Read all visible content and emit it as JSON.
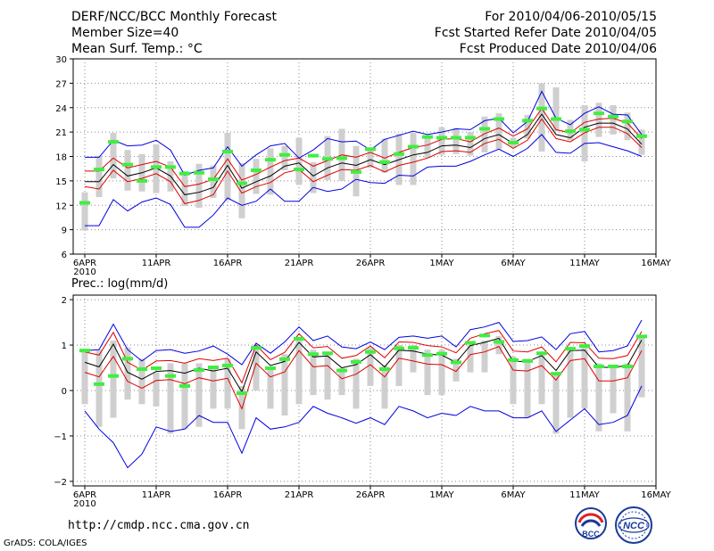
{
  "header": {
    "title": "DERF/NCC/BCC Monthly Forecast",
    "member_size": "Member Size=40",
    "variable": "Mean Surf. Temp.: °C",
    "period": "For 2010/04/06-2010/05/15",
    "started": "Fcst Started Refer Date 2010/04/05",
    "produced": "Fcst Produced Date 2010/04/06"
  },
  "footer": {
    "url": "http://cmdp.ncc.cma.gov.cn",
    "credit": "GrADS: COLA/IGES",
    "logo_bcc_text": "BCC",
    "logo_ncc_text": "NCC"
  },
  "colors": {
    "spread_bar": "#cfcfcf",
    "ensemble_mean": "#000000",
    "inner_band": "#e00000",
    "outer_band": "#0000e0",
    "deterministic_marker": "#40ee40",
    "grid": "#8a8a8a"
  },
  "chart_data": [
    {
      "type": "line",
      "title": "Mean Surf. Temp.: °C",
      "xlabel": "",
      "ylabel": "°C",
      "ylim": [
        6,
        30
      ],
      "yticks": [
        6,
        9,
        12,
        15,
        18,
        21,
        24,
        27,
        30
      ],
      "x_days": [
        0,
        1,
        2,
        3,
        4,
        5,
        6,
        7,
        8,
        9,
        10,
        11,
        12,
        13,
        14,
        15,
        16,
        17,
        18,
        19,
        20,
        21,
        22,
        23,
        24,
        25,
        26,
        27,
        28,
        29,
        30,
        31,
        32,
        33,
        34,
        35,
        36,
        37,
        38,
        39
      ],
      "xticks": [
        {
          "day": 0,
          "label": "6APR",
          "sublabel": "2010"
        },
        {
          "day": 5,
          "label": "11APR"
        },
        {
          "day": 10,
          "label": "16APR"
        },
        {
          "day": 15,
          "label": "21APR"
        },
        {
          "day": 20,
          "label": "26APR"
        },
        {
          "day": 25,
          "label": "1MAY"
        },
        {
          "day": 30,
          "label": "6MAY"
        },
        {
          "day": 35,
          "label": "11MAY"
        },
        {
          "day": 40,
          "label": "16MAY"
        }
      ],
      "series": [
        {
          "name": "Ensemble mean",
          "role": "mean",
          "values": [
            14.9,
            14.9,
            17.0,
            15.6,
            16.0,
            16.6,
            15.6,
            13.3,
            13.6,
            14.2,
            16.9,
            14.1,
            14.9,
            15.6,
            16.8,
            17.2,
            15.6,
            16.6,
            17.2,
            16.9,
            17.6,
            17.0,
            17.6,
            18.2,
            18.5,
            19.3,
            19.4,
            19.1,
            20.2,
            20.7,
            19.6,
            20.7,
            23.2,
            20.7,
            20.3,
            21.6,
            22.1,
            22.1,
            21.4,
            19.5
          ]
        },
        {
          "name": "Lower inner band",
          "role": "inner",
          "values": [
            14.3,
            14.0,
            16.3,
            14.9,
            15.3,
            15.9,
            14.9,
            12.2,
            12.6,
            13.3,
            16.2,
            13.5,
            14.3,
            14.8,
            16.0,
            16.4,
            14.9,
            15.7,
            16.4,
            16.3,
            16.9,
            16.1,
            16.9,
            17.3,
            17.8,
            18.6,
            18.7,
            18.5,
            19.6,
            20.1,
            19.0,
            20.0,
            22.6,
            20.2,
            19.8,
            20.9,
            21.6,
            21.6,
            20.8,
            19.1
          ]
        },
        {
          "name": "Upper inner band",
          "role": "inner",
          "values": [
            16.2,
            16.2,
            17.8,
            16.6,
            17.0,
            17.4,
            16.7,
            14.3,
            14.6,
            15.2,
            17.7,
            15.1,
            15.8,
            16.7,
            17.5,
            17.8,
            16.8,
            17.5,
            18.2,
            17.9,
            18.5,
            17.8,
            18.5,
            19.1,
            19.4,
            20.1,
            20.2,
            19.8,
            20.8,
            21.5,
            20.5,
            21.4,
            23.9,
            21.3,
            20.9,
            22.2,
            22.6,
            22.7,
            22.1,
            20.2
          ]
        },
        {
          "name": "Minimum",
          "role": "outer",
          "values": [
            9.5,
            9.5,
            12.7,
            11.3,
            12.4,
            12.9,
            12.1,
            9.3,
            9.3,
            10.8,
            12.9,
            12.0,
            12.5,
            14.0,
            12.5,
            12.5,
            14.2,
            13.7,
            14.0,
            15.2,
            14.8,
            14.7,
            15.7,
            15.6,
            16.7,
            16.8,
            16.8,
            17.4,
            18.2,
            18.9,
            18.0,
            19.0,
            20.7,
            18.5,
            18.4,
            19.6,
            19.7,
            19.2,
            18.7,
            18.0
          ]
        },
        {
          "name": "Maximum",
          "role": "outer",
          "values": [
            17.9,
            17.9,
            20.0,
            19.3,
            19.4,
            20.0,
            18.8,
            15.7,
            16.3,
            16.6,
            19.2,
            16.8,
            18.2,
            19.3,
            19.6,
            17.8,
            18.8,
            20.2,
            19.8,
            19.9,
            18.8,
            20.1,
            20.6,
            21.1,
            20.7,
            21.0,
            21.4,
            21.3,
            22.4,
            22.7,
            20.9,
            22.3,
            26.0,
            22.7,
            21.9,
            23.3,
            24.1,
            23.2,
            23.1,
            20.7
          ]
        }
      ],
      "spread_bars": {
        "low": [
          8.9,
          13.0,
          15.3,
          13.8,
          13.7,
          13.5,
          13.7,
          11.9,
          11.7,
          12.9,
          12.6,
          10.4,
          13.4,
          13.3,
          16.3,
          14.5,
          13.5,
          15.1,
          15.0,
          13.1,
          16.6,
          16.0,
          14.5,
          14.5,
          17.8,
          18.2,
          18.3,
          18.1,
          18.5,
          18.9,
          19.1,
          20.2,
          18.6,
          21.1,
          20.0,
          17.4,
          20.4,
          20.7,
          20.0,
          18.2
        ],
        "high": [
          13.6,
          18.1,
          20.9,
          18.8,
          18.3,
          19.5,
          17.4,
          16.2,
          17.1,
          16.9,
          20.9,
          17.2,
          17.7,
          19.0,
          19.3,
          20.3,
          17.3,
          20.5,
          21.4,
          19.3,
          19.1,
          20.2,
          20.8,
          20.9,
          20.6,
          21.6,
          21.5,
          21.0,
          22.9,
          23.3,
          20.3,
          23.1,
          27.0,
          26.5,
          22.5,
          24.3,
          24.6,
          24.3,
          23.4,
          21.3
        ]
      },
      "deterministic": [
        12.3,
        16.4,
        19.8,
        17.0,
        15.0,
        16.7,
        16.7,
        15.9,
        16.0,
        15.2,
        18.6,
        14.7,
        16.3,
        17.6,
        18.2,
        16.4,
        18.1,
        17.7,
        17.8,
        16.1,
        18.9,
        17.3,
        18.3,
        19.2,
        20.4,
        20.3,
        20.3,
        20.3,
        21.4,
        22.6,
        19.7,
        22.4,
        23.9,
        22.6,
        21.1,
        21.3,
        23.3,
        22.9,
        22.3,
        20.5
      ]
    },
    {
      "type": "line",
      "title": "Prec.: log(mm/d)",
      "xlabel": "",
      "ylabel": "log(mm/d)",
      "ylim": [
        -2.1,
        2.1
      ],
      "yticks": [
        -2,
        -1,
        0,
        1,
        2
      ],
      "x_days": [
        0,
        1,
        2,
        3,
        4,
        5,
        6,
        7,
        8,
        9,
        10,
        11,
        12,
        13,
        14,
        15,
        16,
        17,
        18,
        19,
        20,
        21,
        22,
        23,
        24,
        25,
        26,
        27,
        28,
        29,
        30,
        31,
        32,
        33,
        34,
        35,
        36,
        37,
        38,
        39
      ],
      "xticks": [
        {
          "day": 0,
          "label": "6APR",
          "sublabel": "2010"
        },
        {
          "day": 5,
          "label": "11APR"
        },
        {
          "day": 10,
          "label": "16APR"
        },
        {
          "day": 15,
          "label": "21APR"
        },
        {
          "day": 20,
          "label": "26APR"
        },
        {
          "day": 25,
          "label": "1MAY"
        },
        {
          "day": 30,
          "label": "6MAY"
        },
        {
          "day": 35,
          "label": "11MAY"
        },
        {
          "day": 40,
          "label": "16MAY"
        }
      ],
      "series": [
        {
          "name": "Ensemble mean",
          "role": "mean",
          "values": [
            0.62,
            0.52,
            1.02,
            0.4,
            0.25,
            0.42,
            0.44,
            0.38,
            0.49,
            0.43,
            0.49,
            -0.03,
            0.85,
            0.55,
            0.64,
            1.06,
            0.74,
            0.76,
            0.5,
            0.57,
            0.79,
            0.52,
            0.89,
            0.87,
            0.8,
            0.78,
            0.62,
            0.99,
            1.06,
            1.15,
            0.64,
            0.64,
            0.77,
            0.44,
            0.88,
            0.89,
            0.51,
            0.51,
            0.55,
            1.11
          ]
        },
        {
          "name": "Lower inner band",
          "role": "inner",
          "values": [
            0.4,
            0.3,
            0.75,
            0.2,
            0.05,
            0.22,
            0.24,
            0.15,
            0.28,
            0.21,
            0.27,
            -0.4,
            0.6,
            0.3,
            0.41,
            0.88,
            0.52,
            0.55,
            0.26,
            0.36,
            0.57,
            0.3,
            0.71,
            0.65,
            0.58,
            0.57,
            0.42,
            0.79,
            0.85,
            0.97,
            0.45,
            0.43,
            0.55,
            0.23,
            0.66,
            0.7,
            0.21,
            0.21,
            0.28,
            0.88
          ]
        },
        {
          "name": "Upper inner band",
          "role": "inner",
          "values": [
            0.85,
            0.78,
            1.28,
            0.62,
            0.45,
            0.65,
            0.66,
            0.6,
            0.7,
            0.66,
            0.71,
            0.17,
            1.0,
            0.68,
            0.84,
            1.25,
            0.94,
            0.97,
            0.71,
            0.77,
            0.98,
            0.72,
            1.07,
            1.06,
            0.99,
            0.96,
            0.83,
            1.15,
            1.25,
            1.32,
            0.87,
            0.85,
            0.96,
            0.63,
            1.06,
            1.05,
            0.71,
            0.7,
            0.77,
            1.3
          ]
        },
        {
          "name": "Minimum",
          "role": "outer",
          "values": [
            -0.45,
            -0.85,
            -1.15,
            -1.7,
            -1.4,
            -0.8,
            -0.9,
            -0.85,
            -0.55,
            -0.7,
            -0.7,
            -1.38,
            -0.6,
            -0.85,
            -0.8,
            -0.7,
            -0.35,
            -0.5,
            -0.6,
            -0.72,
            -0.6,
            -0.75,
            -0.35,
            -0.45,
            -0.6,
            -0.5,
            -0.55,
            -0.35,
            -0.45,
            -0.45,
            -0.6,
            -0.6,
            -0.45,
            -0.9,
            -0.65,
            -0.4,
            -0.75,
            -0.7,
            -0.55,
            0.1
          ]
        },
        {
          "name": "Maximum",
          "role": "outer",
          "values": [
            0.88,
            0.9,
            1.46,
            0.9,
            0.65,
            0.88,
            0.9,
            0.82,
            0.87,
            0.98,
            0.8,
            0.57,
            1.04,
            0.82,
            1.07,
            1.4,
            1.1,
            1.2,
            0.96,
            0.92,
            1.07,
            0.9,
            1.17,
            1.2,
            1.15,
            1.2,
            0.96,
            1.34,
            1.4,
            1.5,
            1.08,
            1.1,
            1.18,
            0.9,
            1.25,
            1.3,
            0.85,
            0.88,
            0.98,
            1.55
          ]
        }
      ],
      "spread_bars": {
        "low": [
          -0.3,
          -0.8,
          -0.6,
          -0.2,
          -0.3,
          -0.35,
          -0.95,
          -0.85,
          -0.8,
          -0.4,
          -0.4,
          -0.85,
          0.0,
          -0.4,
          -0.55,
          -0.3,
          -0.1,
          -0.2,
          -0.1,
          -0.4,
          0.1,
          -0.4,
          0.1,
          0.4,
          -0.1,
          -0.1,
          0.2,
          0.4,
          0.4,
          0.8,
          -0.3,
          -0.6,
          -0.3,
          -0.95,
          -0.6,
          -0.4,
          -0.9,
          -0.5,
          -0.9,
          -0.15
        ],
        "high": [
          0.9,
          0.9,
          1.1,
          0.95,
          0.7,
          0.4,
          0.6,
          0.6,
          0.6,
          0.5,
          0.7,
          0.1,
          1.0,
          0.5,
          0.8,
          1.15,
          0.9,
          0.85,
          0.5,
          0.7,
          0.95,
          0.55,
          1.0,
          1.0,
          0.9,
          0.9,
          0.7,
          1.0,
          1.1,
          1.2,
          0.75,
          0.7,
          0.85,
          0.4,
          0.95,
          1.0,
          0.6,
          0.55,
          0.6,
          1.2
        ]
      },
      "deterministic": [
        0.88,
        0.14,
        0.32,
        0.7,
        0.47,
        0.49,
        0.32,
        0.1,
        0.45,
        0.51,
        0.55,
        -0.06,
        0.94,
        0.49,
        0.69,
        1.14,
        0.8,
        0.82,
        0.44,
        0.63,
        0.85,
        0.47,
        0.93,
        0.94,
        0.78,
        0.81,
        0.62,
        1.05,
        1.21,
        1.07,
        0.67,
        0.65,
        0.82,
        0.37,
        0.92,
        0.98,
        0.53,
        0.53,
        0.53,
        1.19
      ]
    }
  ]
}
